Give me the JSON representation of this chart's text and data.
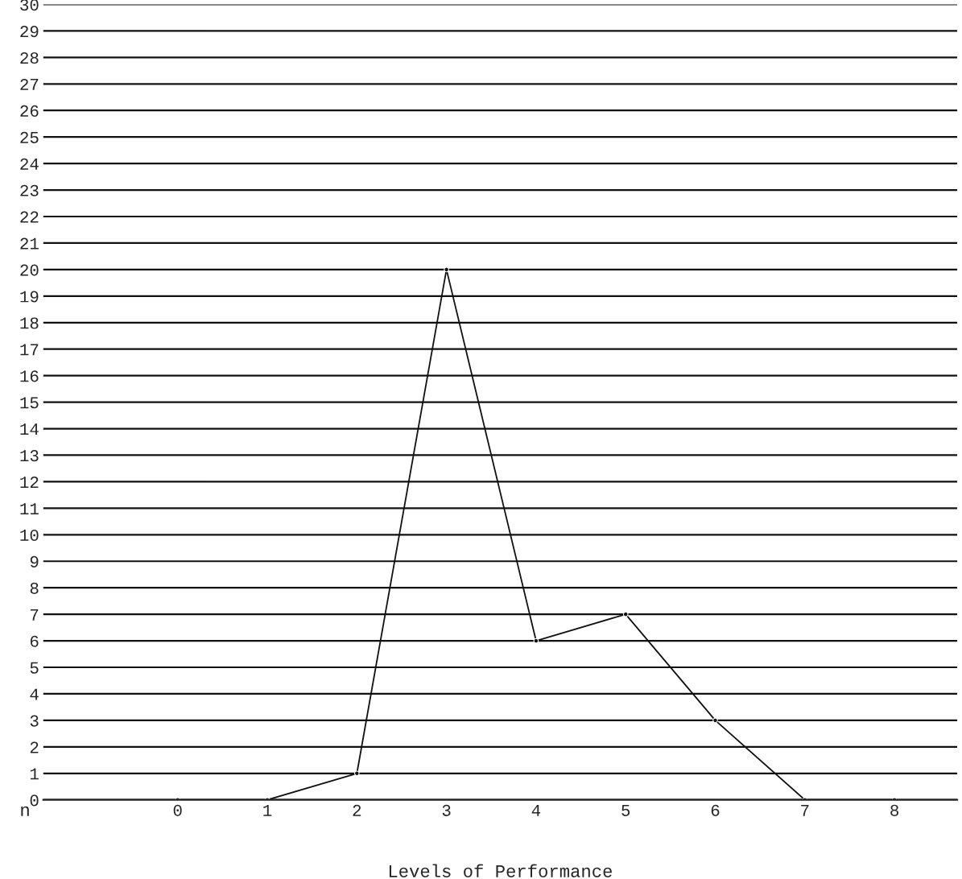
{
  "chart_data": {
    "type": "line",
    "xlabel": "Levels of Performance",
    "ylabel": "n",
    "x": [
      0,
      1,
      2,
      3,
      4,
      5,
      6,
      7,
      8
    ],
    "series": [
      {
        "color": "#111111",
        "values": [
          0,
          0,
          1,
          20,
          6,
          7,
          3,
          0,
          0
        ]
      }
    ],
    "xlim": [
      -1.5,
      8.7
    ],
    "xticks": [
      0,
      1,
      2,
      3,
      4,
      5,
      6,
      7,
      8
    ],
    "ylim": [
      0,
      30
    ],
    "yticks": [
      0,
      1,
      2,
      3,
      4,
      5,
      6,
      7,
      8,
      9,
      10,
      11,
      12,
      13,
      14,
      15,
      16,
      17,
      18,
      19,
      20,
      21,
      22,
      23,
      24,
      25,
      26,
      27,
      28,
      29,
      30
    ],
    "grid": "y",
    "marker": "circle",
    "line_style": "solid"
  }
}
